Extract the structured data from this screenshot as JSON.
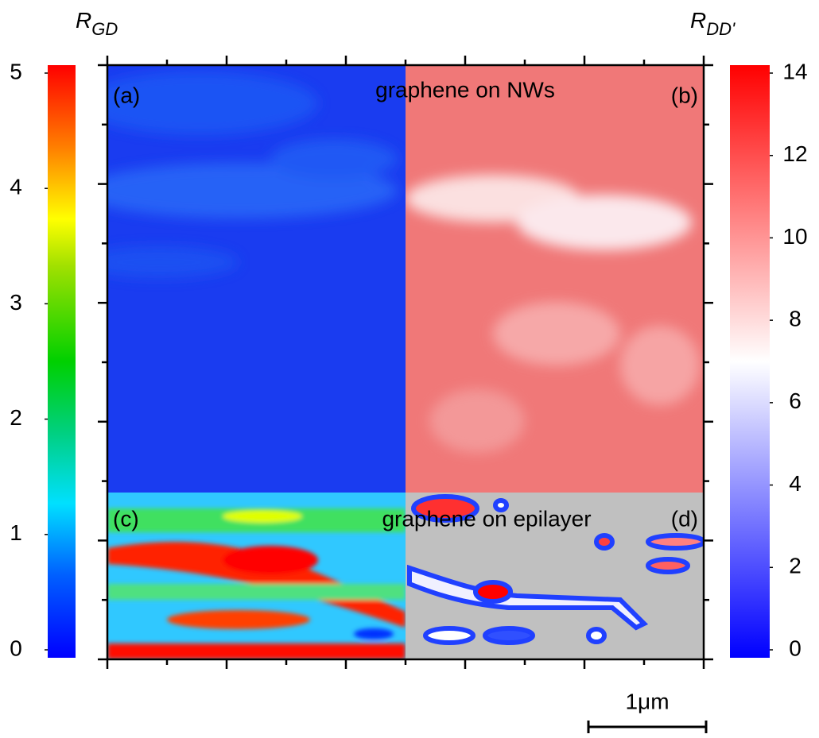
{
  "chart_data": {
    "type": "heatmap",
    "left_colorbar": {
      "label": "R",
      "subscript": "GD",
      "range": [
        0,
        5
      ],
      "ticks": [
        0,
        1,
        2,
        3,
        4,
        5
      ]
    },
    "right_colorbar": {
      "label": "R",
      "subscript": "DD'",
      "range": [
        0,
        14
      ],
      "ticks": [
        0,
        2,
        4,
        6,
        8,
        10,
        12,
        14
      ]
    },
    "panels": [
      "(a)",
      "(b)",
      "(c)",
      "(d)"
    ],
    "annotations": [
      "graphene on NWs",
      "graphene on epilayer"
    ],
    "scale_bar": "1μm"
  }
}
